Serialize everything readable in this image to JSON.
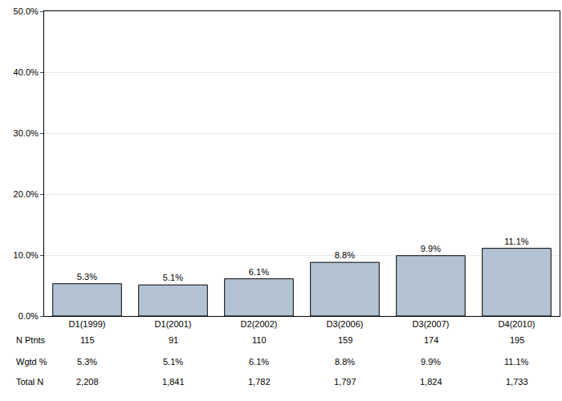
{
  "chart_data": {
    "type": "bar",
    "categories": [
      "D1(1999)",
      "D1(2001)",
      "D2(2002)",
      "D3(2006)",
      "D3(2007)",
      "D4(2010)"
    ],
    "values": [
      5.3,
      5.1,
      6.1,
      8.8,
      9.9,
      11.1
    ],
    "value_labels": [
      "5.3%",
      "5.1%",
      "6.1%",
      "8.8%",
      "9.9%",
      "11.1%"
    ],
    "data_labels": true,
    "color": "#b4c3d3",
    "ylim": [
      0,
      50
    ],
    "yticks": [
      {
        "value": 0,
        "label": "0.0%"
      },
      {
        "value": 10,
        "label": "10.0%"
      },
      {
        "value": 20,
        "label": "20.0%"
      },
      {
        "value": 30,
        "label": "30.0%"
      },
      {
        "value": 40,
        "label": "40.0%"
      },
      {
        "value": 50,
        "label": "50.0%"
      }
    ],
    "grid": true
  },
  "table": {
    "rows": [
      {
        "label": "N Ptnts",
        "cells": [
          "115",
          "91",
          "110",
          "159",
          "174",
          "195"
        ]
      },
      {
        "label": "Wgtd %",
        "cells": [
          "5.3%",
          "5.1%",
          "6.1%",
          "8.8%",
          "9.9%",
          "11.1%"
        ]
      },
      {
        "label": "Total N",
        "cells": [
          "2,208",
          "1,841",
          "1,782",
          "1,797",
          "1,824",
          "1,733"
        ]
      }
    ]
  }
}
